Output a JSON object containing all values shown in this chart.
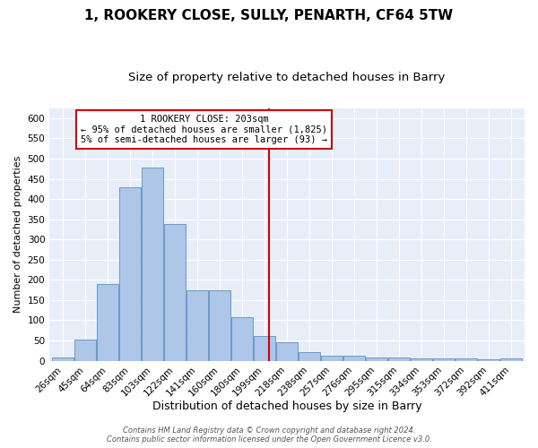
{
  "title": "1, ROOKERY CLOSE, SULLY, PENARTH, CF64 5TW",
  "subtitle": "Size of property relative to detached houses in Barry",
  "xlabel": "Distribution of detached houses by size in Barry",
  "ylabel": "Number of detached properties",
  "categories": [
    "26sqm",
    "45sqm",
    "64sqm",
    "83sqm",
    "103sqm",
    "122sqm",
    "141sqm",
    "160sqm",
    "180sqm",
    "199sqm",
    "218sqm",
    "238sqm",
    "257sqm",
    "276sqm",
    "295sqm",
    "315sqm",
    "334sqm",
    "353sqm",
    "372sqm",
    "392sqm",
    "411sqm"
  ],
  "values": [
    7,
    52,
    190,
    430,
    478,
    338,
    173,
    173,
    108,
    62,
    45,
    22,
    12,
    12,
    7,
    8,
    6,
    5,
    6,
    4,
    5
  ],
  "bar_color": "#aec6e8",
  "bar_edge_color": "#5a8fc2",
  "vline_color": "#cc0000",
  "ylim": [
    0,
    625
  ],
  "yticks": [
    0,
    50,
    100,
    150,
    200,
    250,
    300,
    350,
    400,
    450,
    500,
    550,
    600
  ],
  "annotation_title": "1 ROOKERY CLOSE: 203sqm",
  "annotation_line1": "← 95% of detached houses are smaller (1,825)",
  "annotation_line2": "5% of semi-detached houses are larger (93) →",
  "annotation_box_color": "#ffffff",
  "annotation_box_edge": "#cc0000",
  "background_color": "#e8eef8",
  "footer_text": "Contains HM Land Registry data © Crown copyright and database right 2024.\nContains public sector information licensed under the Open Government Licence v3.0.",
  "title_fontsize": 11,
  "subtitle_fontsize": 9.5,
  "ylabel_fontsize": 8,
  "xlabel_fontsize": 9,
  "tick_fontsize": 7.5,
  "annotation_fontsize": 7.5,
  "footer_fontsize": 6
}
